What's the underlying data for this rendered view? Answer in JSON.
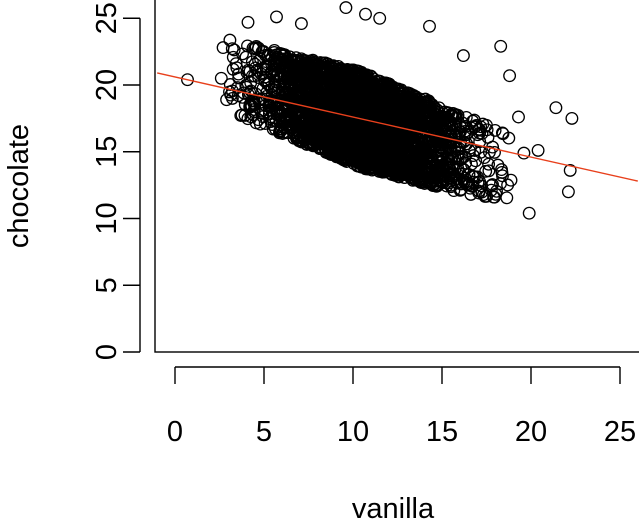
{
  "chart_data": {
    "type": "scatter",
    "title": "",
    "xlabel": "vanilla",
    "ylabel": "chocolate",
    "xlim": [
      -1,
      26
    ],
    "ylim": [
      -1,
      26
    ],
    "x_ticks": [
      0,
      5,
      10,
      15,
      20,
      25
    ],
    "y_ticks": [
      0,
      5,
      10,
      15,
      20,
      25
    ],
    "grid": false,
    "legend": "none",
    "point_color": "#000000",
    "line_color": "#e8401c",
    "regression_line": {
      "intercept": 20.6,
      "slope": -0.3
    },
    "point_cloud": {
      "description_value": "dense cloud of thousands of points",
      "x_range": [
        3,
        19
      ],
      "y_range": [
        11.5,
        25.5
      ]
    },
    "outliers": [
      {
        "x": 0.7,
        "y": 20.4
      },
      {
        "x": 2.6,
        "y": 20.5
      },
      {
        "x": 2.7,
        "y": 22.8
      },
      {
        "x": 2.9,
        "y": 18.9
      },
      {
        "x": 4.1,
        "y": 24.7
      },
      {
        "x": 5.7,
        "y": 25.1
      },
      {
        "x": 7.1,
        "y": 24.6
      },
      {
        "x": 9.6,
        "y": 25.8
      },
      {
        "x": 10.7,
        "y": 25.3
      },
      {
        "x": 11.5,
        "y": 25.0
      },
      {
        "x": 14.3,
        "y": 24.4
      },
      {
        "x": 18.3,
        "y": 22.9
      },
      {
        "x": 18.8,
        "y": 20.7
      },
      {
        "x": 19.3,
        "y": 17.6
      },
      {
        "x": 19.6,
        "y": 14.9
      },
      {
        "x": 19.9,
        "y": 10.4
      },
      {
        "x": 20.4,
        "y": 15.1
      },
      {
        "x": 21.4,
        "y": 18.3
      },
      {
        "x": 22.1,
        "y": 12.0
      },
      {
        "x": 22.2,
        "y": 13.6
      },
      {
        "x": 22.3,
        "y": 17.5
      },
      {
        "x": 17.9,
        "y": 11.6
      },
      {
        "x": 18.4,
        "y": 13.2
      },
      {
        "x": 16.2,
        "y": 22.2
      }
    ]
  }
}
